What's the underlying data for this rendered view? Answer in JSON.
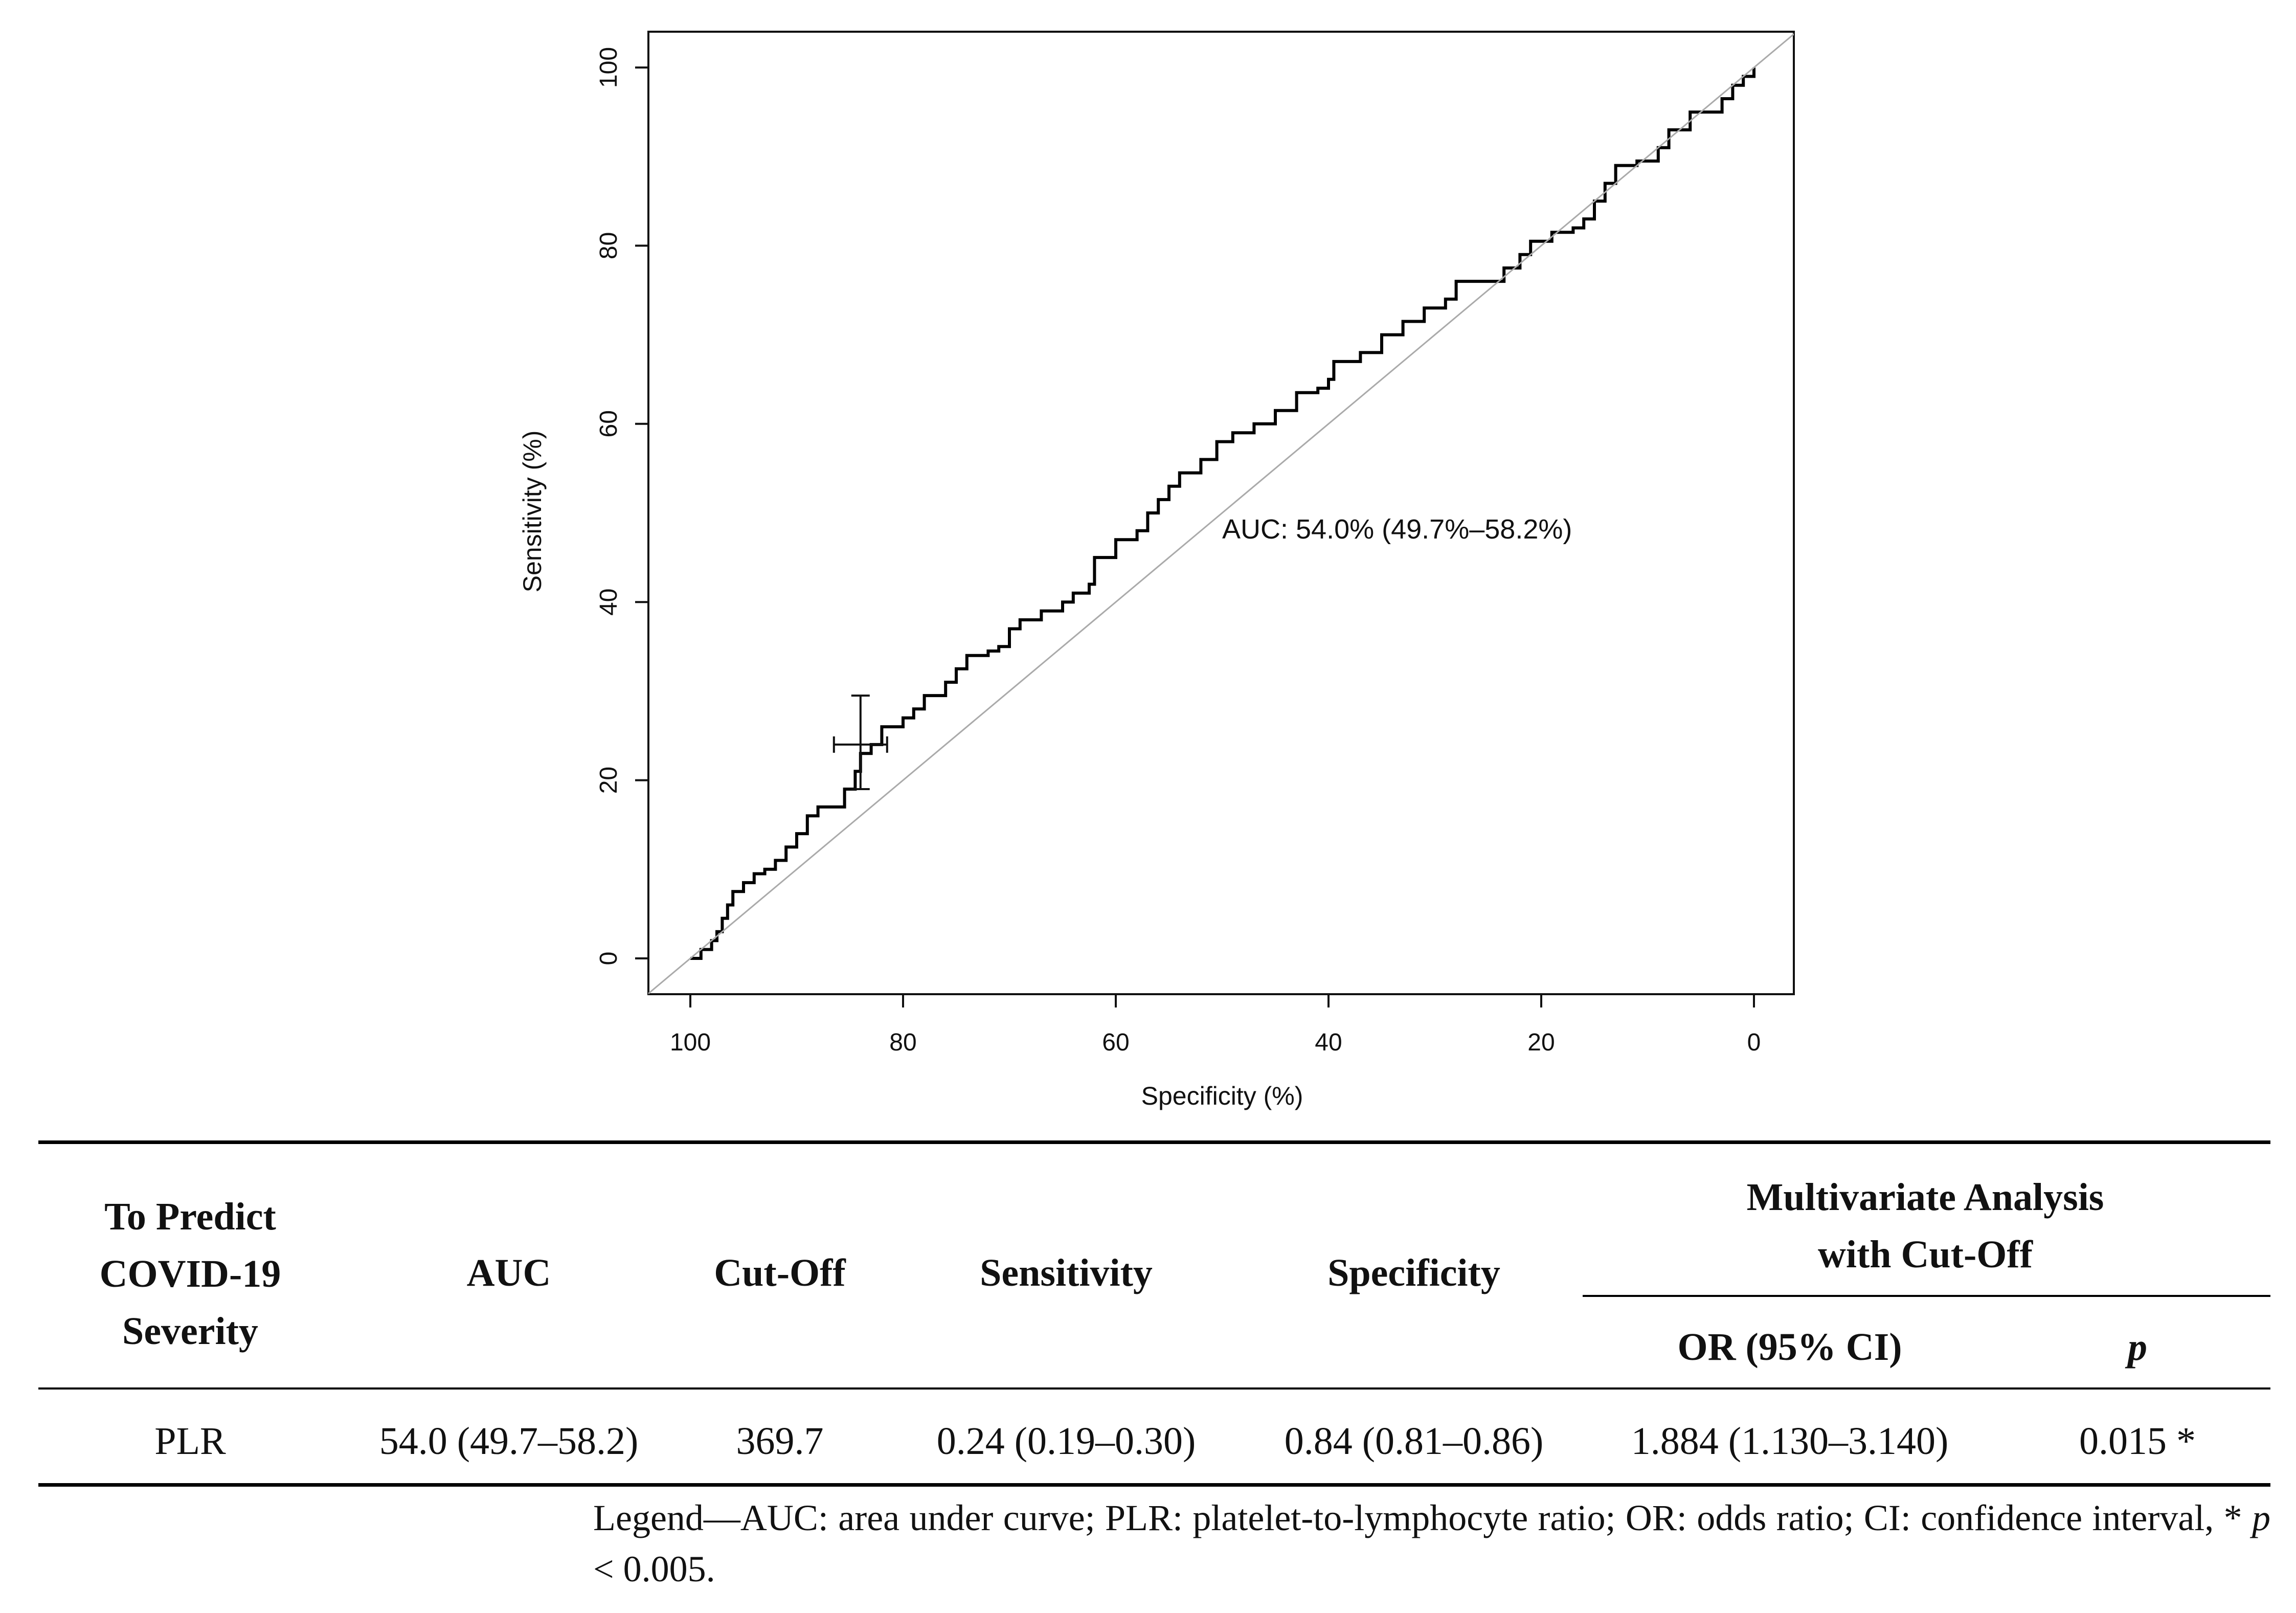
{
  "chart_data": {
    "type": "line",
    "title": "",
    "xlabel": "Specificity (%)",
    "ylabel": "Sensitivity (%)",
    "xlim": [
      100,
      0
    ],
    "ylim": [
      0,
      100
    ],
    "x_ticks": [
      "100",
      "80",
      "60",
      "40",
      "20",
      "0"
    ],
    "y_ticks": [
      "0",
      "20",
      "40",
      "60",
      "80",
      "100"
    ],
    "annotation": "AUC: 54.0% (49.7%–58.2%)",
    "series": [
      {
        "name": "ROC curve PLR",
        "color": "#000000",
        "points": [
          [
            100,
            0
          ],
          [
            99,
            1
          ],
          [
            98,
            2
          ],
          [
            97.5,
            3
          ],
          [
            97,
            4.5
          ],
          [
            96.5,
            6
          ],
          [
            96,
            7.5
          ],
          [
            95,
            8.5
          ],
          [
            94,
            9.5
          ],
          [
            93,
            10
          ],
          [
            92,
            11
          ],
          [
            91,
            12.5
          ],
          [
            90,
            14
          ],
          [
            89,
            16
          ],
          [
            88,
            17
          ],
          [
            86,
            17
          ],
          [
            85.5,
            19
          ],
          [
            84.5,
            21
          ],
          [
            84,
            23
          ],
          [
            83,
            24
          ],
          [
            82,
            26
          ],
          [
            80,
            27
          ],
          [
            79,
            28
          ],
          [
            78,
            29.5
          ],
          [
            76,
            31
          ],
          [
            75,
            32.5
          ],
          [
            74,
            34
          ],
          [
            72,
            34.5
          ],
          [
            71,
            35
          ],
          [
            70,
            37
          ],
          [
            69,
            38
          ],
          [
            67,
            39
          ],
          [
            65,
            40
          ],
          [
            64,
            41
          ],
          [
            62.5,
            42
          ],
          [
            62,
            45
          ],
          [
            60,
            47
          ],
          [
            58,
            48
          ],
          [
            57,
            50
          ],
          [
            56,
            51.5
          ],
          [
            55,
            53
          ],
          [
            54,
            54.5
          ],
          [
            52,
            56
          ],
          [
            50.5,
            58
          ],
          [
            49,
            59
          ],
          [
            47,
            60
          ],
          [
            45,
            61.5
          ],
          [
            43,
            63.5
          ],
          [
            41,
            64
          ],
          [
            40,
            65
          ],
          [
            39.5,
            67
          ],
          [
            37,
            68
          ],
          [
            35,
            70
          ],
          [
            33,
            71.5
          ],
          [
            31,
            73
          ],
          [
            29,
            74
          ],
          [
            28,
            76
          ],
          [
            25,
            76
          ],
          [
            23.5,
            77.5
          ],
          [
            22,
            79
          ],
          [
            21,
            80.5
          ],
          [
            19,
            81.5
          ],
          [
            17,
            82
          ],
          [
            16,
            83
          ],
          [
            15,
            85
          ],
          [
            14,
            87
          ],
          [
            13,
            89
          ],
          [
            11,
            89.5
          ],
          [
            9,
            91
          ],
          [
            8,
            93
          ],
          [
            6,
            95
          ],
          [
            4,
            95
          ],
          [
            3,
            96.5
          ],
          [
            2,
            98
          ],
          [
            1,
            99
          ],
          [
            0,
            100
          ]
        ]
      },
      {
        "name": "reference diagonal",
        "color": "#aaaaaa",
        "points": [
          [
            104,
            -4
          ],
          [
            0,
            100
          ],
          [
            -4,
            104
          ]
        ]
      }
    ],
    "cut_off_point": {
      "x": 84,
      "y": 24,
      "x_range": [
        81.5,
        86.5
      ],
      "y_range": [
        19,
        29.5
      ]
    }
  },
  "table": {
    "headers": {
      "predict": [
        "To Predict",
        "COVID-19",
        "Severity"
      ],
      "auc": "AUC",
      "cutoff": "Cut-Off",
      "sensitivity": "Sensitivity",
      "specificity": "Specificity",
      "multivariate": [
        "Multivariate Analysis",
        "with Cut-Off"
      ],
      "or_ci": "OR (95% CI)",
      "p": "p"
    },
    "row": {
      "name": "PLR",
      "auc": "54.0 (49.7–58.2)",
      "cutoff": "369.7",
      "sensitivity": "0.24 (0.19–0.30)",
      "specificity": "0.84 (0.81–0.86)",
      "or_ci": "1.884 (1.130–3.140)",
      "p": "0.015 *"
    }
  },
  "legend": {
    "text": "Legend—AUC: area under curve; PLR: platelet-to-lymphocyte ratio; OR: odds ratio; CI: confidence interval, * ",
    "p_symbol": "p",
    "threshold": " < 0.005."
  }
}
